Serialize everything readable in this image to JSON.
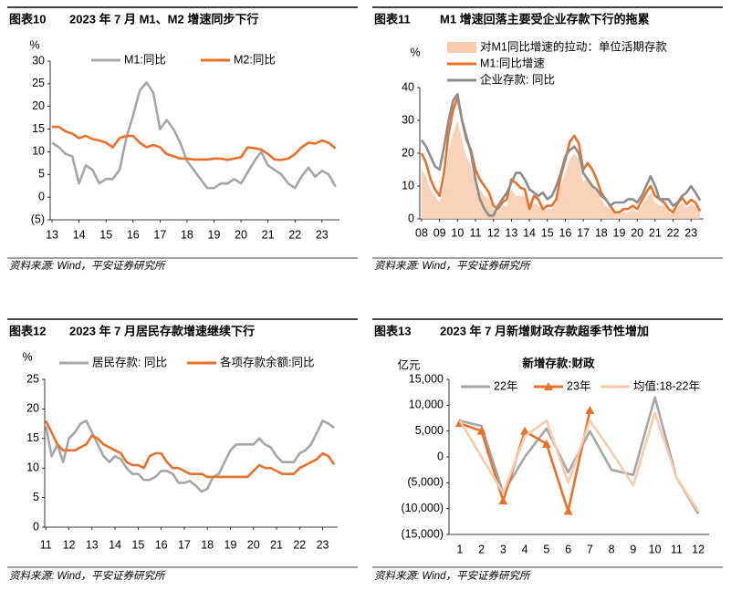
{
  "chart_data": [
    {
      "type": "line",
      "label": "图表10",
      "title": "2023 年 7 月 M1、M2 增速同步下行",
      "source": "资料来源: Wind，平安证券研究所",
      "y_unit": "%",
      "x": [
        13,
        13.25,
        13.5,
        13.75,
        14,
        14.25,
        14.5,
        14.75,
        15,
        15.25,
        15.5,
        15.75,
        16,
        16.25,
        16.5,
        16.75,
        17,
        17.25,
        17.5,
        17.75,
        18,
        18.25,
        18.5,
        18.75,
        19,
        19.25,
        19.5,
        19.75,
        20,
        20.25,
        20.5,
        20.75,
        21,
        21.25,
        21.5,
        21.75,
        22,
        22.25,
        22.5,
        22.75,
        23,
        23.25,
        23.5
      ],
      "series": [
        {
          "name": "M1:同比",
          "color": "#a6a6a6",
          "values": [
            12,
            11,
            9.5,
            9,
            3,
            7,
            6,
            3,
            4,
            4,
            6,
            13,
            18,
            23.5,
            25.3,
            23,
            15,
            17,
            15,
            12,
            8,
            6,
            4,
            2,
            2,
            3,
            3,
            4,
            3,
            5.5,
            8,
            10,
            7,
            6,
            5,
            3,
            2,
            4.6,
            6.5,
            4.5,
            5.8,
            5,
            2.3
          ]
        },
        {
          "name": "M2:同比",
          "color": "#e8702a",
          "values": [
            15.5,
            15.5,
            14.5,
            14,
            13,
            13.5,
            12.8,
            12.5,
            12,
            11,
            13,
            13.5,
            13.5,
            12,
            11,
            11.5,
            11,
            9.5,
            9,
            8.5,
            8.5,
            8.3,
            8.3,
            8.3,
            8.5,
            8.5,
            8.2,
            8.5,
            8.8,
            11,
            10.8,
            10.5,
            9.5,
            8.3,
            8.2,
            8.5,
            9.5,
            11,
            12,
            11.8,
            12.5,
            12,
            10.7
          ]
        }
      ],
      "xlim": [
        12.93,
        23.65
      ],
      "xticks": [
        13,
        14,
        15,
        16,
        17,
        18,
        19,
        20,
        21,
        22,
        23
      ],
      "ylim": [
        -5,
        30
      ],
      "yticks": [
        30,
        25,
        20,
        15,
        10,
        5,
        0,
        {
          "value": -5,
          "label": "(5)"
        }
      ],
      "negative_tick_color": "#c00000"
    },
    {
      "type": "line",
      "label": "图表11",
      "title": "M1 增速回落主要受企业存款下行的拖累",
      "source": "资料来源: Wind，平安证券研究所",
      "y_unit": "%",
      "x": [
        8,
        8.25,
        8.5,
        8.75,
        9,
        9.25,
        9.5,
        9.75,
        10,
        10.25,
        10.5,
        10.75,
        11,
        11.25,
        11.5,
        11.75,
        12,
        12.25,
        12.5,
        12.75,
        13,
        13.25,
        13.5,
        13.75,
        14,
        14.25,
        14.5,
        14.75,
        15,
        15.25,
        15.5,
        15.75,
        16,
        16.25,
        16.5,
        16.75,
        17,
        17.25,
        17.5,
        17.75,
        18,
        18.25,
        18.5,
        18.75,
        19,
        19.25,
        19.5,
        19.75,
        20,
        20.25,
        20.5,
        20.75,
        21,
        21.25,
        21.5,
        21.75,
        22,
        22.25,
        22.5,
        22.75,
        23,
        23.25,
        23.5
      ],
      "series": [
        {
          "name": "对M1同比增速的拉动：单位活期存款",
          "color": "#f8cbad",
          "style": "area",
          "values": [
            15,
            13,
            9,
            7,
            5,
            10,
            20,
            26,
            30,
            24,
            19,
            16,
            11,
            9,
            7,
            6,
            3,
            2,
            4,
            4,
            9,
            7,
            7,
            7,
            3,
            5,
            4,
            3,
            3,
            3,
            5,
            10,
            14,
            18,
            20,
            18,
            11,
            13,
            11,
            9,
            6,
            4,
            3,
            1.5,
            1.5,
            2,
            2,
            3,
            2,
            4,
            6,
            8,
            5,
            4,
            4,
            2,
            1.5,
            3.5,
            5,
            3.5,
            4.5,
            4,
            1.8
          ]
        },
        {
          "name": "M1:同比增速",
          "color": "#e8702a",
          "values": [
            20,
            17,
            12,
            9,
            7,
            14,
            26,
            33,
            37,
            30,
            24,
            21,
            15,
            12,
            10,
            8,
            4,
            3,
            5,
            6,
            12,
            11,
            9.5,
            9,
            3,
            7,
            6,
            3,
            4,
            4,
            6,
            13,
            18,
            23.5,
            25.3,
            23,
            15,
            17,
            15,
            12,
            8,
            6,
            4,
            2,
            2,
            3,
            3,
            4,
            3,
            5.5,
            8,
            10,
            7,
            6,
            5,
            3,
            2,
            4.6,
            6.5,
            4.5,
            5.8,
            5,
            2.3
          ]
        },
        {
          "name": "企业存款: 同比",
          "color": "#8c8c8c",
          "values": [
            24,
            22,
            19,
            16,
            15,
            22,
            30,
            36,
            38,
            30,
            25,
            20,
            12,
            6,
            3,
            1,
            1,
            4,
            6,
            8,
            11,
            14,
            14,
            12,
            9,
            8,
            7,
            8,
            6,
            7,
            10,
            14,
            19,
            21,
            22,
            20,
            14,
            12,
            10,
            9,
            7,
            6,
            4,
            5,
            5,
            5,
            6,
            6,
            5,
            7,
            10,
            13,
            10,
            6,
            6,
            6,
            4,
            5,
            7,
            8,
            10,
            8,
            5.6
          ]
        }
      ],
      "xlim": [
        7.9,
        23.7
      ],
      "xticks": [
        {
          "value": 8,
          "label": "08"
        },
        {
          "value": 9,
          "label": "09"
        },
        10,
        11,
        12,
        13,
        14,
        15,
        16,
        17,
        18,
        19,
        20,
        21,
        22,
        23
      ],
      "ylim": [
        0,
        40
      ],
      "yticks": [
        40,
        30,
        20,
        10,
        0
      ]
    },
    {
      "type": "line",
      "label": "图表12",
      "title": "2023 年 7 月居民存款增速继续下行",
      "source": "资料来源: Wind，平安证券研究所",
      "y_unit": "%",
      "x": [
        11,
        11.25,
        11.5,
        11.75,
        12,
        12.25,
        12.5,
        12.75,
        13,
        13.25,
        13.5,
        13.75,
        14,
        14.25,
        14.5,
        14.75,
        15,
        15.25,
        15.5,
        15.75,
        16,
        16.25,
        16.5,
        16.75,
        17,
        17.25,
        17.5,
        17.75,
        18,
        18.25,
        18.5,
        18.75,
        19,
        19.25,
        19.5,
        19.75,
        20,
        20.25,
        20.5,
        20.75,
        21,
        21.25,
        21.5,
        21.75,
        22,
        22.25,
        22.5,
        22.75,
        23,
        23.25,
        23.5
      ],
      "series": [
        {
          "name": "居民存款: 同比",
          "color": "#a6a6a6",
          "values": [
            17,
            12,
            14,
            11,
            15,
            16,
            17.5,
            18,
            16,
            14,
            12,
            11,
            12,
            11.5,
            10,
            9,
            9,
            8,
            8,
            8.5,
            9.5,
            9.5,
            9,
            7.5,
            7.5,
            7.8,
            7,
            6,
            6.5,
            8.5,
            9,
            11,
            13,
            14,
            14,
            14,
            14,
            15,
            14,
            13.5,
            12,
            11,
            11,
            11,
            12.5,
            13,
            14,
            16,
            18,
            17.5,
            16.8
          ]
        },
        {
          "name": "各项存款余额:同比",
          "color": "#e8702a",
          "values": [
            18,
            16,
            14,
            13,
            13,
            13,
            13.5,
            14,
            15.5,
            15,
            14,
            13.5,
            13,
            12.5,
            11,
            10.5,
            10.5,
            10,
            12,
            12.5,
            12.5,
            11,
            10,
            10,
            9.5,
            9,
            9,
            9,
            8.5,
            8.5,
            8.5,
            8.5,
            8.5,
            8.5,
            8.5,
            8.5,
            9.5,
            10.5,
            10,
            10,
            9.5,
            9,
            9,
            9,
            10,
            10.5,
            11,
            11.5,
            12.5,
            12,
            10.6
          ]
        }
      ],
      "xlim": [
        10.95,
        23.65
      ],
      "xticks": [
        11,
        12,
        13,
        14,
        15,
        16,
        17,
        18,
        19,
        20,
        21,
        22,
        23
      ],
      "ylim": [
        0,
        25
      ],
      "yticks": [
        25,
        20,
        15,
        10,
        5,
        0
      ]
    },
    {
      "type": "line",
      "label": "图表13",
      "title": "2023 年 7 月新增财政存款超季节性增加",
      "subtitle": "新增存款:财政",
      "source": "资料来源: Wind，平安证券研究所",
      "y_unit": "亿元",
      "categories": [
        "1",
        "2",
        "3",
        "4",
        "5",
        "6",
        "7",
        "8",
        "9",
        "10",
        "11",
        "12"
      ],
      "series": [
        {
          "name": "22年",
          "color": "#a6a6a6",
          "values": [
            7000,
            6000,
            -7000,
            0,
            5500,
            -3000,
            5000,
            -2500,
            -3500,
            11500,
            -4000,
            -11000
          ]
        },
        {
          "name": "23年",
          "color": "#e8702a",
          "marker": "triangle",
          "values": [
            6500,
            5000,
            -8500,
            5000,
            2500,
            -10500,
            9000,
            null,
            null,
            null,
            null,
            null
          ]
        },
        {
          "name": "均值:18-22年",
          "color": "#f8cbad",
          "values": [
            7000,
            0,
            -7000,
            4000,
            7000,
            -5000,
            7000,
            1000,
            -5500,
            8500,
            -4000,
            -10500
          ]
        }
      ],
      "ylim": [
        -15000,
        15000
      ],
      "yticks": [
        {
          "value": 15000,
          "label": "15,000"
        },
        {
          "value": 10000,
          "label": "10,000"
        },
        {
          "value": 5000,
          "label": "5,000"
        },
        0,
        {
          "value": -5000,
          "label": "(5,000)"
        },
        {
          "value": -10000,
          "label": "(10,000)"
        },
        {
          "value": -15000,
          "label": "(15,000)"
        }
      ],
      "negative_tick_color": "#c00000"
    }
  ]
}
